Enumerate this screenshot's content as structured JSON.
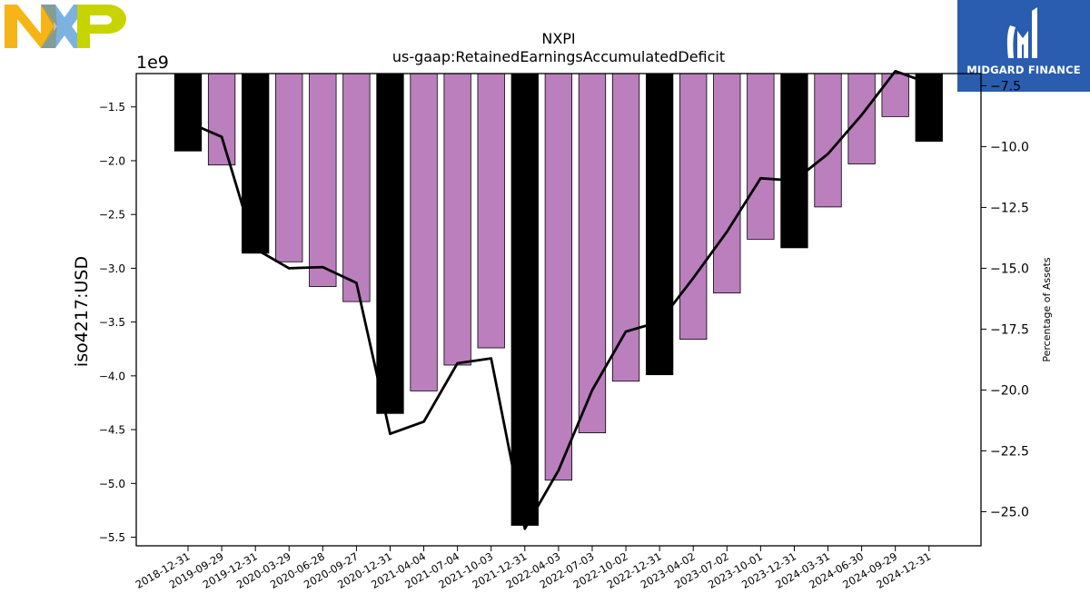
{
  "brand": {
    "company_logo": "NXP",
    "sponsor_name": "MIDGARD FINANCE",
    "colors": {
      "nxp_yellow": "#f6b417",
      "nxp_blue": "#7bb2df",
      "nxp_green": "#c8d400",
      "midgard_blue": "#2a5db0"
    }
  },
  "chart_data": {
    "type": "bar",
    "title": "NXPI",
    "subtitle": "us-gaap:RetainedEarningsAccumulatedDeficit",
    "ylabel": "iso4217:USD",
    "y2label": "Percentage of Assets",
    "y_offset_label": "1e9",
    "ylim": [
      -5.58,
      -1.19
    ],
    "y2lim": [
      -26.4,
      -7.0
    ],
    "yticks": [
      -1.5,
      -2.0,
      -2.5,
      -3.0,
      -3.5,
      -4.0,
      -4.5,
      -5.0,
      -5.5
    ],
    "ytick_labels": [
      "−1.5",
      "−2.0",
      "−2.5",
      "−3.0",
      "−3.5",
      "−4.0",
      "−4.5",
      "−5.0",
      "−5.5"
    ],
    "y2ticks": [
      -7.5,
      -10.0,
      -12.5,
      -15.0,
      -17.5,
      -20.0,
      -22.5,
      -25.0
    ],
    "y2tick_labels": [
      "−7.5",
      "−10.0",
      "−12.5",
      "−15.0",
      "−17.5",
      "−20.0",
      "−22.5",
      "−25.0"
    ],
    "categories": [
      "2018-12-31",
      "2019-09-29",
      "2019-12-31",
      "2020-03-29",
      "2020-06-28",
      "2020-09-27",
      "2020-12-31",
      "2021-04-04",
      "2021-07-04",
      "2021-10-03",
      "2021-12-31",
      "2022-04-03",
      "2022-07-03",
      "2022-10-02",
      "2022-12-31",
      "2023-04-02",
      "2023-07-02",
      "2023-10-01",
      "2023-12-31",
      "2024-03-31",
      "2024-06-30",
      "2024-09-29",
      "2024-12-31"
    ],
    "series": [
      {
        "type": "bar",
        "values": [
          -1.91,
          -2.04,
          -2.86,
          -2.94,
          -3.17,
          -3.31,
          -4.35,
          -4.14,
          -3.9,
          -3.74,
          -5.39,
          -4.97,
          -4.53,
          -4.05,
          -3.99,
          -3.66,
          -3.23,
          -2.73,
          -2.81,
          -2.43,
          -2.03,
          -1.59,
          -1.82
        ],
        "colors": [
          "#000000",
          "#bb7fbe",
          "#000000",
          "#bb7fbe",
          "#bb7fbe",
          "#bb7fbe",
          "#000000",
          "#bb7fbe",
          "#bb7fbe",
          "#bb7fbe",
          "#000000",
          "#bb7fbe",
          "#bb7fbe",
          "#bb7fbe",
          "#000000",
          "#bb7fbe",
          "#bb7fbe",
          "#bb7fbe",
          "#000000",
          "#bb7fbe",
          "#bb7fbe",
          "#bb7fbe",
          "#000000"
        ]
      },
      {
        "type": "line",
        "axis": "right",
        "color": "#000000",
        "values": [
          -9.0,
          -9.6,
          -14.2,
          -15.0,
          -14.95,
          -15.6,
          -21.8,
          -21.3,
          -18.9,
          -18.7,
          -25.7,
          -23.3,
          -20.0,
          -17.6,
          -17.2,
          -15.4,
          -13.5,
          -11.3,
          -11.4,
          -10.3,
          -8.7,
          -6.9,
          -7.4
        ]
      }
    ],
    "grid": false,
    "legend": "none"
  }
}
